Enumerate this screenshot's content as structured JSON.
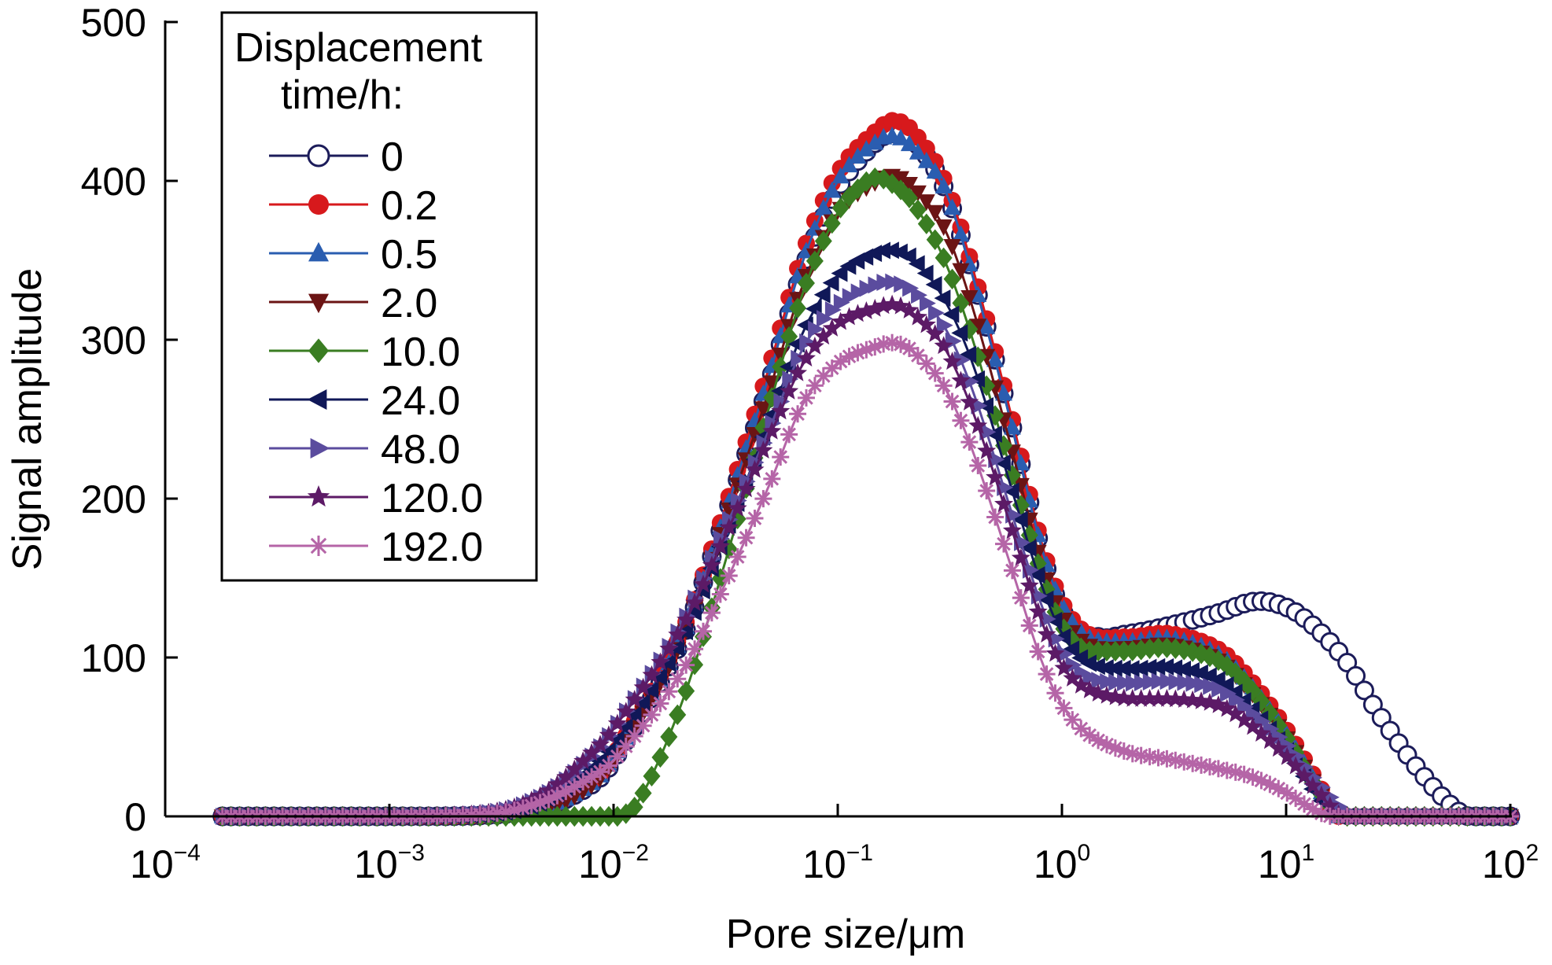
{
  "chart_data": {
    "type": "scatter",
    "xlabel": "Pore size/μm",
    "ylabel": "Signal amplitude",
    "x_scale": "log",
    "xlim": [
      0.0001,
      100
    ],
    "ylim": [
      0,
      500
    ],
    "x_ticks": [
      {
        "value": 0.0001,
        "base": "10",
        "exp": "−4"
      },
      {
        "value": 0.001,
        "base": "10",
        "exp": "−3"
      },
      {
        "value": 0.01,
        "base": "10",
        "exp": "−2"
      },
      {
        "value": 0.1,
        "base": "10",
        "exp": "−1"
      },
      {
        "value": 1,
        "base": "10",
        "exp": "0"
      },
      {
        "value": 10,
        "base": "10",
        "exp": "1"
      },
      {
        "value": 100,
        "base": "10",
        "exp": "2"
      }
    ],
    "y_ticks": [
      "0",
      "100",
      "200",
      "300",
      "400",
      "500"
    ],
    "grid": false,
    "legend": {
      "title_line1": "Displacement",
      "title_line2": "time/h:",
      "placement": "top-left"
    },
    "series": [
      {
        "name": "0",
        "color": "#1c1c5a",
        "marker": "hollow-circle",
        "points": [
          [
            0.00018,
            0
          ],
          [
            0.001,
            0
          ],
          [
            0.003,
            1
          ],
          [
            0.005,
            6
          ],
          [
            0.008,
            20
          ],
          [
            0.01,
            35
          ],
          [
            0.02,
            110
          ],
          [
            0.03,
            180
          ],
          [
            0.05,
            275
          ],
          [
            0.07,
            345
          ],
          [
            0.1,
            395
          ],
          [
            0.15,
            425
          ],
          [
            0.18,
            430
          ],
          [
            0.22,
            425
          ],
          [
            0.3,
            395
          ],
          [
            0.4,
            340
          ],
          [
            0.6,
            245
          ],
          [
            0.8,
            170
          ],
          [
            1,
            130
          ],
          [
            1.3,
            113
          ],
          [
            2,
            115
          ],
          [
            3,
            120
          ],
          [
            5,
            128
          ],
          [
            7,
            135
          ],
          [
            9,
            134
          ],
          [
            12,
            125
          ],
          [
            18,
            100
          ],
          [
            25,
            68
          ],
          [
            35,
            38
          ],
          [
            50,
            12
          ],
          [
            65,
            0
          ],
          [
            100,
            0
          ]
        ]
      },
      {
        "name": "0.2",
        "color": "#d7191c",
        "marker": "circle",
        "points": [
          [
            0.00018,
            0
          ],
          [
            0.001,
            0
          ],
          [
            0.003,
            1
          ],
          [
            0.005,
            6
          ],
          [
            0.008,
            22
          ],
          [
            0.01,
            38
          ],
          [
            0.02,
            115
          ],
          [
            0.03,
            185
          ],
          [
            0.05,
            285
          ],
          [
            0.07,
            355
          ],
          [
            0.1,
            405
          ],
          [
            0.15,
            432
          ],
          [
            0.18,
            438
          ],
          [
            0.22,
            430
          ],
          [
            0.3,
            400
          ],
          [
            0.4,
            345
          ],
          [
            0.6,
            250
          ],
          [
            0.8,
            175
          ],
          [
            1,
            135
          ],
          [
            1.3,
            115
          ],
          [
            2,
            113
          ],
          [
            3,
            115
          ],
          [
            5,
            105
          ],
          [
            7,
            85
          ],
          [
            10,
            55
          ],
          [
            14,
            20
          ],
          [
            17,
            0
          ],
          [
            100,
            0
          ]
        ]
      },
      {
        "name": "0.5",
        "color": "#2a5db0",
        "marker": "triangle-up",
        "points": [
          [
            0.00018,
            0
          ],
          [
            0.001,
            0
          ],
          [
            0.003,
            1
          ],
          [
            0.005,
            6
          ],
          [
            0.008,
            21
          ],
          [
            0.01,
            37
          ],
          [
            0.02,
            112
          ],
          [
            0.03,
            182
          ],
          [
            0.05,
            280
          ],
          [
            0.07,
            350
          ],
          [
            0.1,
            400
          ],
          [
            0.15,
            425
          ],
          [
            0.18,
            428
          ],
          [
            0.22,
            420
          ],
          [
            0.3,
            395
          ],
          [
            0.4,
            340
          ],
          [
            0.6,
            245
          ],
          [
            0.8,
            172
          ],
          [
            1,
            133
          ],
          [
            1.3,
            113
          ],
          [
            2,
            110
          ],
          [
            3,
            112
          ],
          [
            5,
            102
          ],
          [
            7,
            82
          ],
          [
            10,
            52
          ],
          [
            14,
            18
          ],
          [
            17,
            0
          ],
          [
            100,
            0
          ]
        ]
      },
      {
        "name": "2.0",
        "color": "#6b1414",
        "marker": "triangle-down",
        "points": [
          [
            0.00018,
            0
          ],
          [
            0.001,
            0
          ],
          [
            0.003,
            1
          ],
          [
            0.005,
            5
          ],
          [
            0.008,
            20
          ],
          [
            0.01,
            35
          ],
          [
            0.02,
            110
          ],
          [
            0.03,
            178
          ],
          [
            0.05,
            270
          ],
          [
            0.07,
            335
          ],
          [
            0.1,
            380
          ],
          [
            0.15,
            400
          ],
          [
            0.18,
            403
          ],
          [
            0.22,
            395
          ],
          [
            0.3,
            370
          ],
          [
            0.4,
            320
          ],
          [
            0.6,
            230
          ],
          [
            0.8,
            162
          ],
          [
            1,
            126
          ],
          [
            1.3,
            108
          ],
          [
            2,
            106
          ],
          [
            3,
            108
          ],
          [
            5,
            98
          ],
          [
            7,
            78
          ],
          [
            10,
            50
          ],
          [
            14,
            16
          ],
          [
            17,
            0
          ],
          [
            100,
            0
          ]
        ]
      },
      {
        "name": "10.0",
        "color": "#3a7d22",
        "marker": "diamond",
        "points": [
          [
            0.00018,
            0
          ],
          [
            0.001,
            0
          ],
          [
            0.008,
            0
          ],
          [
            0.0105,
            0
          ],
          [
            0.013,
            10
          ],
          [
            0.02,
            70
          ],
          [
            0.03,
            150
          ],
          [
            0.05,
            260
          ],
          [
            0.07,
            330
          ],
          [
            0.1,
            380
          ],
          [
            0.13,
            398
          ],
          [
            0.15,
            402
          ],
          [
            0.18,
            397
          ],
          [
            0.22,
            385
          ],
          [
            0.3,
            350
          ],
          [
            0.4,
            300
          ],
          [
            0.6,
            215
          ],
          [
            0.8,
            155
          ],
          [
            1,
            120
          ],
          [
            1.3,
            104
          ],
          [
            2,
            104
          ],
          [
            3,
            106
          ],
          [
            5,
            98
          ],
          [
            7,
            80
          ],
          [
            10,
            50
          ],
          [
            14,
            16
          ],
          [
            18,
            0
          ],
          [
            100,
            0
          ]
        ]
      },
      {
        "name": "24.0",
        "color": "#101858",
        "marker": "triangle-left",
        "points": [
          [
            0.00018,
            0
          ],
          [
            0.001,
            0
          ],
          [
            0.003,
            2
          ],
          [
            0.005,
            10
          ],
          [
            0.008,
            30
          ],
          [
            0.01,
            45
          ],
          [
            0.02,
            110
          ],
          [
            0.03,
            170
          ],
          [
            0.05,
            250
          ],
          [
            0.07,
            305
          ],
          [
            0.1,
            340
          ],
          [
            0.15,
            355
          ],
          [
            0.18,
            356
          ],
          [
            0.22,
            350
          ],
          [
            0.3,
            325
          ],
          [
            0.4,
            285
          ],
          [
            0.6,
            205
          ],
          [
            0.8,
            148
          ],
          [
            1,
            115
          ],
          [
            1.3,
            97
          ],
          [
            2,
            93
          ],
          [
            3,
            94
          ],
          [
            5,
            86
          ],
          [
            7,
            68
          ],
          [
            10,
            42
          ],
          [
            14,
            12
          ],
          [
            17,
            0
          ],
          [
            100,
            0
          ]
        ]
      },
      {
        "name": "48.0",
        "color": "#5b4c9e",
        "marker": "triangle-right",
        "points": [
          [
            0.00018,
            0
          ],
          [
            0.001,
            0
          ],
          [
            0.003,
            3
          ],
          [
            0.005,
            14
          ],
          [
            0.008,
            38
          ],
          [
            0.01,
            55
          ],
          [
            0.02,
            120
          ],
          [
            0.03,
            175
          ],
          [
            0.05,
            245
          ],
          [
            0.07,
            295
          ],
          [
            0.1,
            322
          ],
          [
            0.15,
            335
          ],
          [
            0.18,
            336
          ],
          [
            0.22,
            330
          ],
          [
            0.3,
            308
          ],
          [
            0.4,
            268
          ],
          [
            0.6,
            190
          ],
          [
            0.8,
            135
          ],
          [
            1,
            104
          ],
          [
            1.3,
            88
          ],
          [
            2,
            84
          ],
          [
            3,
            85
          ],
          [
            5,
            80
          ],
          [
            7,
            65
          ],
          [
            10,
            45
          ],
          [
            14,
            20
          ],
          [
            20,
            0
          ],
          [
            100,
            0
          ]
        ]
      },
      {
        "name": "120.0",
        "color": "#5c1a66",
        "marker": "star",
        "points": [
          [
            0.00018,
            0
          ],
          [
            0.001,
            0
          ],
          [
            0.003,
            3
          ],
          [
            0.005,
            15
          ],
          [
            0.008,
            40
          ],
          [
            0.01,
            55
          ],
          [
            0.02,
            118
          ],
          [
            0.03,
            170
          ],
          [
            0.05,
            240
          ],
          [
            0.07,
            285
          ],
          [
            0.1,
            310
          ],
          [
            0.15,
            320
          ],
          [
            0.18,
            322
          ],
          [
            0.22,
            316
          ],
          [
            0.3,
            295
          ],
          [
            0.4,
            255
          ],
          [
            0.6,
            180
          ],
          [
            0.8,
            125
          ],
          [
            1,
            95
          ],
          [
            1.3,
            80
          ],
          [
            2,
            74
          ],
          [
            3,
            74
          ],
          [
            5,
            70
          ],
          [
            7,
            57
          ],
          [
            10,
            38
          ],
          [
            14,
            15
          ],
          [
            18,
            0
          ],
          [
            100,
            0
          ]
        ]
      },
      {
        "name": "192.0",
        "color": "#b565a7",
        "marker": "asterisk",
        "points": [
          [
            0.00018,
            0
          ],
          [
            0.001,
            0
          ],
          [
            0.003,
            2
          ],
          [
            0.005,
            10
          ],
          [
            0.008,
            25
          ],
          [
            0.01,
            35
          ],
          [
            0.02,
            90
          ],
          [
            0.03,
            140
          ],
          [
            0.05,
            210
          ],
          [
            0.07,
            260
          ],
          [
            0.1,
            285
          ],
          [
            0.15,
            296
          ],
          [
            0.18,
            298
          ],
          [
            0.22,
            292
          ],
          [
            0.3,
            270
          ],
          [
            0.4,
            230
          ],
          [
            0.6,
            155
          ],
          [
            0.8,
            100
          ],
          [
            1,
            70
          ],
          [
            1.3,
            52
          ],
          [
            2,
            40
          ],
          [
            3,
            36
          ],
          [
            5,
            30
          ],
          [
            7,
            25
          ],
          [
            10,
            15
          ],
          [
            13,
            5
          ],
          [
            16,
            0
          ],
          [
            100,
            0
          ]
        ]
      }
    ]
  }
}
